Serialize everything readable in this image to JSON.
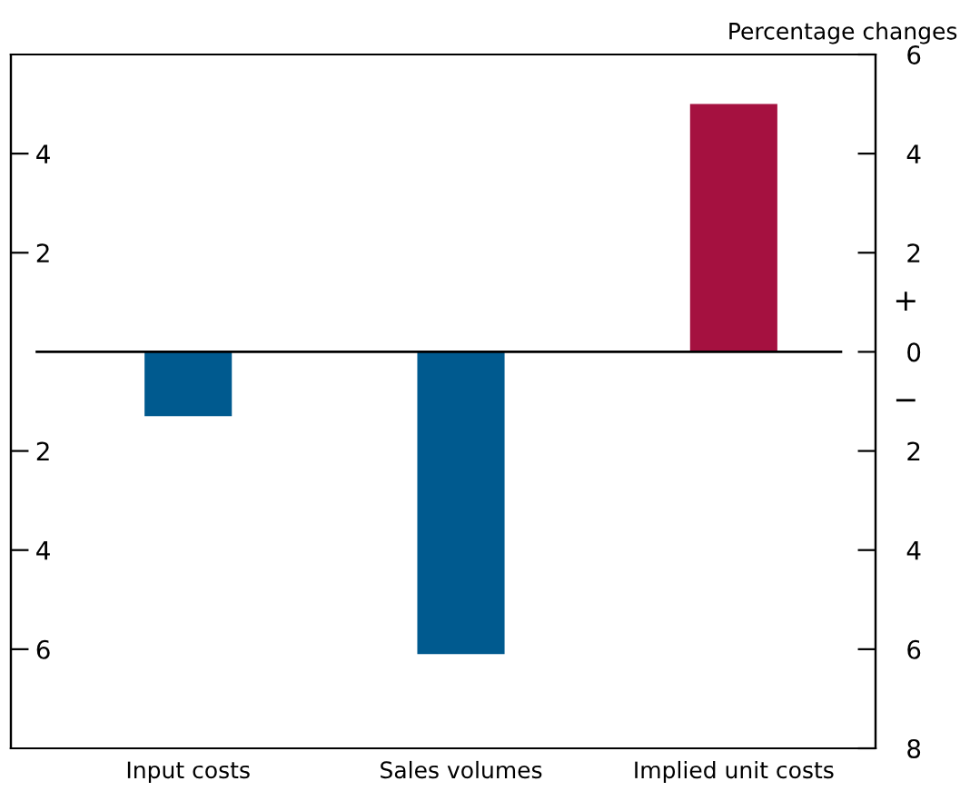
{
  "chart_data": {
    "type": "bar",
    "y2label": "Percentage changes",
    "categories": [
      "Input costs",
      "Sales volumes",
      "Implied unit costs"
    ],
    "values": [
      -1.3,
      -6.1,
      5.0
    ],
    "colors": [
      "#005a8f",
      "#005a8f",
      "#a51140"
    ],
    "ylim": [
      -8,
      6
    ],
    "yticks": [
      {
        "value": 4,
        "label": "4"
      },
      {
        "value": 2,
        "label": "2"
      },
      {
        "value": -2,
        "label": "2"
      },
      {
        "value": -4,
        "label": "4"
      },
      {
        "value": -6,
        "label": "6"
      }
    ],
    "y2lim": [
      -8,
      6
    ],
    "y2ticks": [
      {
        "value": 6,
        "label": "6"
      },
      {
        "value": 4,
        "label": "4"
      },
      {
        "value": 2,
        "label": "2"
      },
      {
        "value": 0,
        "label": "0"
      },
      {
        "value": -2,
        "label": "2"
      },
      {
        "value": -4,
        "label": "4"
      },
      {
        "value": -6,
        "label": "6"
      },
      {
        "value": -8,
        "label": "8"
      }
    ],
    "ref_lines": [
      {
        "axis": "y",
        "value": 0,
        "color": "#000000"
      }
    ],
    "annotations": [
      "+",
      "−"
    ],
    "grid": false,
    "legend": false
  }
}
